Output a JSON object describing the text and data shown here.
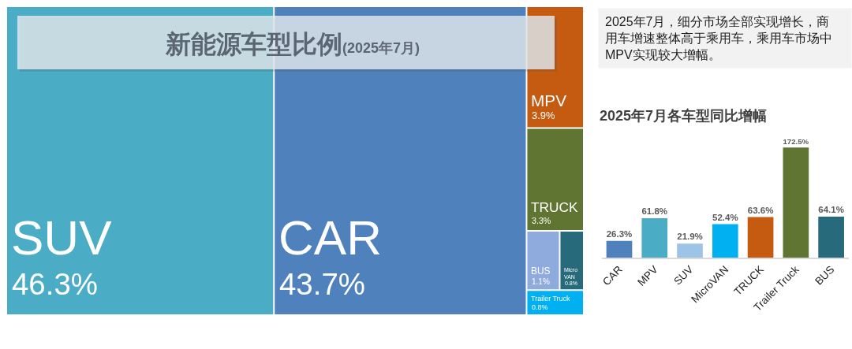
{
  "chart_data": [
    {
      "type": "other",
      "title": "新能源车型比例",
      "subtitle": "(2025年7月)",
      "categories": [
        "SUV",
        "CAR",
        "MPV",
        "TRUCK",
        "BUS",
        "MicroVAN",
        "Trailer Truck"
      ],
      "values": [
        46.3,
        43.7,
        3.9,
        3.3,
        1.1,
        0.8,
        0.8
      ],
      "colors": [
        "#4BACC6",
        "#4F81BD",
        "#C55A11",
        "#607531",
        "#8FAADC",
        "#276A7C",
        "#00B0F0"
      ],
      "value_labels": [
        "46.3%",
        "43.7%",
        "3.9%",
        "3.3%",
        "1.1%",
        "0.8%",
        "0.8%"
      ]
    },
    {
      "type": "bar",
      "title": "2025年7月各车型同比增幅",
      "annotations": [
        "2025年7月，细分市场全部实现增长，商用车增速整体高于乘用车，乘用车市场中MPV实现较大增幅。"
      ],
      "categories": [
        "CAR",
        "MPV",
        "SUV",
        "MicroVAN",
        "TRUCK",
        "Trailer Truck",
        "BUS"
      ],
      "values": [
        26.3,
        61.8,
        21.9,
        52.4,
        63.6,
        172.5,
        64.1
      ],
      "colors": [
        "#4F81BD",
        "#4BACC6",
        "#9DC3E6",
        "#00B0F0",
        "#C55A11",
        "#607531",
        "#276A7C"
      ],
      "value_labels": [
        "26.3%",
        "61.8%",
        "21.9%",
        "52.4%",
        "63.6%",
        "172.5%",
        "64.1%"
      ],
      "tick_labels": "x"
    }
  ]
}
